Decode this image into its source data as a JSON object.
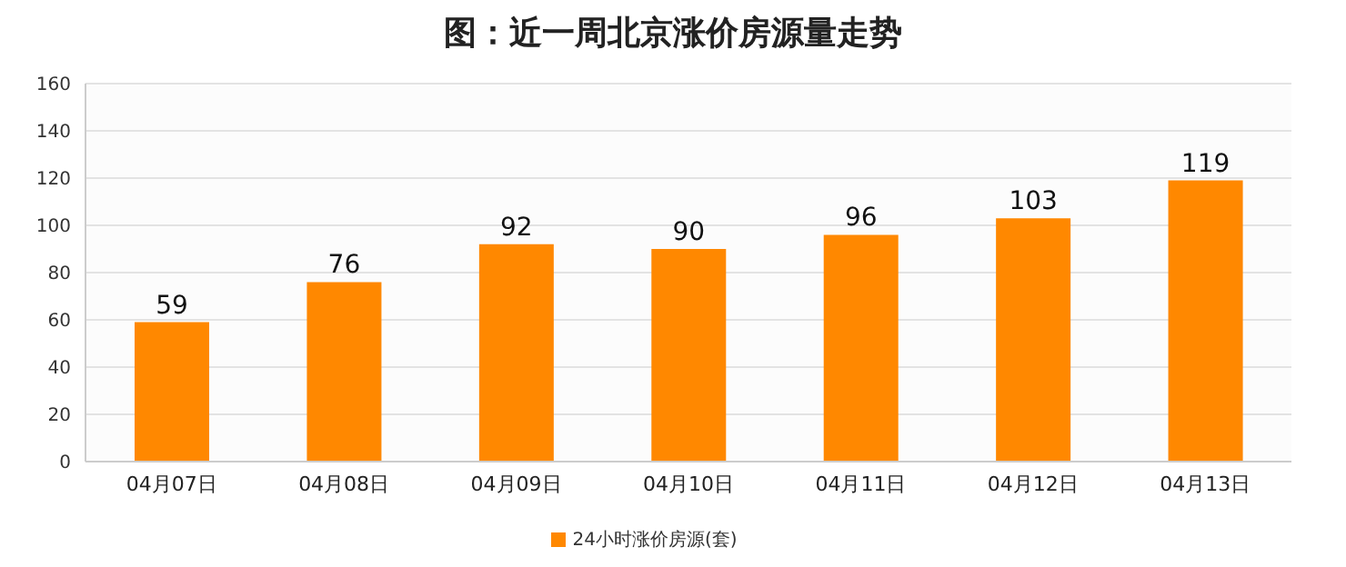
{
  "chart_data": {
    "type": "bar",
    "title": "图：近一周北京涨价房源量走势",
    "categories": [
      "04月07日",
      "04月08日",
      "04月09日",
      "04月10日",
      "04月11日",
      "04月12日",
      "04月13日"
    ],
    "series": [
      {
        "name": "24小时涨价房源(套)",
        "color": "#ff8800",
        "values": [
          59,
          76,
          92,
          90,
          96,
          103,
          119
        ]
      }
    ],
    "ylim": [
      0,
      160
    ],
    "yticks": [
      0,
      20,
      40,
      60,
      80,
      100,
      120,
      140,
      160
    ],
    "grid": "y",
    "legend": "bottom",
    "data_labels": true
  }
}
